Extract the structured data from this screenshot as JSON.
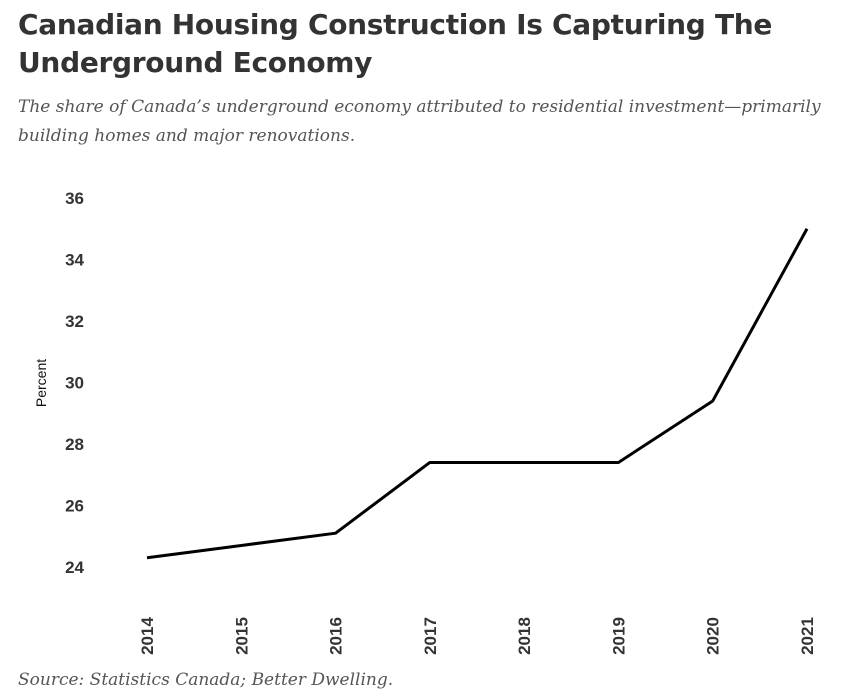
{
  "chart_data": {
    "type": "line",
    "title": "Canadian Housing Construction Is Capturing The Underground Economy",
    "subtitle": "The share of Canada’s underground economy attributed to residential investment—primarily building homes and major renovations.",
    "source": "Source: Statistics Canada; Better Dwelling.",
    "xlabel": "",
    "ylabel": "Percent",
    "categories": [
      "2014",
      "2015",
      "2016",
      "2017",
      "2018",
      "2019",
      "2020",
      "2021"
    ],
    "values": [
      24.3,
      24.7,
      25.1,
      27.4,
      27.4,
      27.4,
      29.4,
      35.0
    ],
    "yticks": [
      24,
      26,
      28,
      30,
      32,
      34,
      36
    ],
    "ylim": [
      24,
      36
    ],
    "grid": false,
    "line_color": "#000000"
  }
}
